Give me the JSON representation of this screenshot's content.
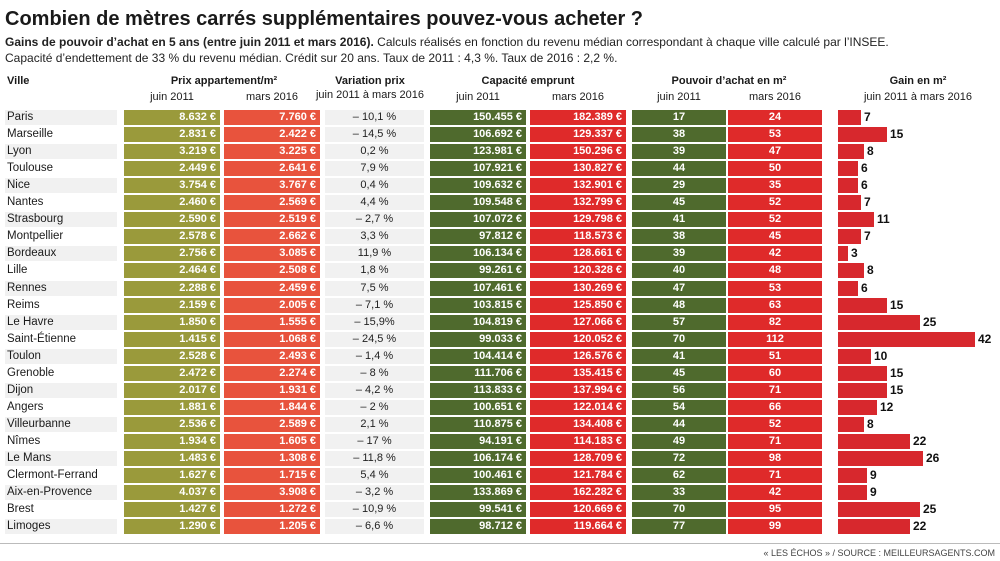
{
  "title": "Combien de mètres carrés supplémentaires pouvez-vous acheter ?",
  "subtitle_bold": "Gains de pouvoir d’achat en 5 ans (entre juin 2011 et mars 2016).",
  "subtitle_rest": " Calculs réalisés en fonction du revenu médian correspondant à chaque ville calculé par l’INSEE.",
  "subtitle2": "Capacité d’endettement de 33 % du revenu médian. Crédit sur 20 ans. Taux de 2011 : 4,3 %. Taux de 2016 : 2,2 %.",
  "headers": {
    "ville": "Ville",
    "prix": "Prix appartement/m²",
    "variation": "Variation prix",
    "variation_sub": "juin 2011 à mars 2016",
    "capacite": "Capacité emprunt",
    "pouvoir": "Pouvoir d’achat en m²",
    "gain": "Gain en m²",
    "gain_sub": "juin 2011 à mars 2016",
    "juin": "juin 2011",
    "mars": "mars 2016"
  },
  "footer": "« LES ÉCHOS » / SOURCE : MEILLEURSAGENTS.COM",
  "colors": {
    "olive": "#9a9a3b",
    "dark_green": "#4f6a2d",
    "red_light": "#e8533d",
    "red": "#df2a2a",
    "gain_bar": "#d7282d"
  },
  "chart_data": {
    "type": "table",
    "gain_max": 42,
    "rows": [
      {
        "city": "Paris",
        "prix_2011": "8.632 €",
        "prix_2016": "7.760 €",
        "variation": "– 10,1 %",
        "cap_2011": "150.455 €",
        "cap_2016": "182.389 €",
        "pa_2011": "17",
        "pa_2016": "24",
        "gain": 7
      },
      {
        "city": "Marseille",
        "prix_2011": "2.831 €",
        "prix_2016": "2.422 €",
        "variation": "– 14,5 %",
        "cap_2011": "106.692 €",
        "cap_2016": "129.337 €",
        "pa_2011": "38",
        "pa_2016": "53",
        "gain": 15
      },
      {
        "city": "Lyon",
        "prix_2011": "3.219 €",
        "prix_2016": "3.225 €",
        "variation": "0,2 %",
        "cap_2011": "123.981 €",
        "cap_2016": "150.296 €",
        "pa_2011": "39",
        "pa_2016": "47",
        "gain": 8
      },
      {
        "city": "Toulouse",
        "prix_2011": "2.449 €",
        "prix_2016": "2.641 €",
        "variation": "7,9 %",
        "cap_2011": "107.921 €",
        "cap_2016": "130.827 €",
        "pa_2011": "44",
        "pa_2016": "50",
        "gain": 6
      },
      {
        "city": "Nice",
        "prix_2011": "3.754 €",
        "prix_2016": "3.767 €",
        "variation": "0,4 %",
        "cap_2011": "109.632 €",
        "cap_2016": "132.901 €",
        "pa_2011": "29",
        "pa_2016": "35",
        "gain": 6
      },
      {
        "city": "Nantes",
        "prix_2011": "2.460 €",
        "prix_2016": "2.569 €",
        "variation": "4,4 %",
        "cap_2011": "109.548 €",
        "cap_2016": "132.799 €",
        "pa_2011": "45",
        "pa_2016": "52",
        "gain": 7
      },
      {
        "city": "Strasbourg",
        "prix_2011": "2.590 €",
        "prix_2016": "2.519 €",
        "variation": "– 2,7 %",
        "cap_2011": "107.072 €",
        "cap_2016": "129.798 €",
        "pa_2011": "41",
        "pa_2016": "52",
        "gain": 11
      },
      {
        "city": "Montpellier",
        "prix_2011": "2.578 €",
        "prix_2016": "2.662 €",
        "variation": "3,3 %",
        "cap_2011": "97.812 €",
        "cap_2016": "118.573 €",
        "pa_2011": "38",
        "pa_2016": "45",
        "gain": 7
      },
      {
        "city": "Bordeaux",
        "prix_2011": "2.756 €",
        "prix_2016": "3.085 €",
        "variation": "11,9 %",
        "cap_2011": "106.134 €",
        "cap_2016": "128.661 €",
        "pa_2011": "39",
        "pa_2016": "42",
        "gain": 3
      },
      {
        "city": "Lille",
        "prix_2011": "2.464 €",
        "prix_2016": "2.508 €",
        "variation": "1,8 %",
        "cap_2011": "99.261 €",
        "cap_2016": "120.328 €",
        "pa_2011": "40",
        "pa_2016": "48",
        "gain": 8
      },
      {
        "city": "Rennes",
        "prix_2011": "2.288 €",
        "prix_2016": "2.459 €",
        "variation": "7,5 %",
        "cap_2011": "107.461 €",
        "cap_2016": "130.269 €",
        "pa_2011": "47",
        "pa_2016": "53",
        "gain": 6
      },
      {
        "city": "Reims",
        "prix_2011": "2.159 €",
        "prix_2016": "2.005 €",
        "variation": "– 7,1 %",
        "cap_2011": "103.815 €",
        "cap_2016": "125.850 €",
        "pa_2011": "48",
        "pa_2016": "63",
        "gain": 15
      },
      {
        "city": "Le Havre",
        "prix_2011": "1.850 €",
        "prix_2016": "1.555 €",
        "variation": "– 15,9%",
        "cap_2011": "104.819 €",
        "cap_2016": "127.066 €",
        "pa_2011": "57",
        "pa_2016": "82",
        "gain": 25
      },
      {
        "city": "Saint-Étienne",
        "prix_2011": "1.415 €",
        "prix_2016": "1.068 €",
        "variation": "– 24,5 %",
        "cap_2011": "99.033 €",
        "cap_2016": "120.052 €",
        "pa_2011": "70",
        "pa_2016": "112",
        "gain": 42
      },
      {
        "city": "Toulon",
        "prix_2011": "2.528 €",
        "prix_2016": "2.493 €",
        "variation": "– 1,4 %",
        "cap_2011": "104.414 €",
        "cap_2016": "126.576 €",
        "pa_2011": "41",
        "pa_2016": "51",
        "gain": 10
      },
      {
        "city": "Grenoble",
        "prix_2011": "2.472 €",
        "prix_2016": "2.274 €",
        "variation": "– 8 %",
        "cap_2011": "111.706 €",
        "cap_2016": "135.415 €",
        "pa_2011": "45",
        "pa_2016": "60",
        "gain": 15
      },
      {
        "city": "Dijon",
        "prix_2011": "2.017 €",
        "prix_2016": "1.931 €",
        "variation": "– 4,2 %",
        "cap_2011": "113.833 €",
        "cap_2016": "137.994 €",
        "pa_2011": "56",
        "pa_2016": "71",
        "gain": 15
      },
      {
        "city": "Angers",
        "prix_2011": "1.881 €",
        "prix_2016": "1.844 €",
        "variation": "– 2 %",
        "cap_2011": "100.651 €",
        "cap_2016": "122.014 €",
        "pa_2011": "54",
        "pa_2016": "66",
        "gain": 12
      },
      {
        "city": "Villeurbanne",
        "prix_2011": "2.536 €",
        "prix_2016": "2.589 €",
        "variation": "2,1 %",
        "cap_2011": "110.875 €",
        "cap_2016": "134.408 €",
        "pa_2011": "44",
        "pa_2016": "52",
        "gain": 8
      },
      {
        "city": "Nîmes",
        "prix_2011": "1.934 €",
        "prix_2016": "1.605 €",
        "variation": "– 17 %",
        "cap_2011": "94.191 €",
        "cap_2016": "114.183 €",
        "pa_2011": "49",
        "pa_2016": "71",
        "gain": 22
      },
      {
        "city": "Le Mans",
        "prix_2011": "1.483 €",
        "prix_2016": "1.308 €",
        "variation": "– 11,8 %",
        "cap_2011": "106.174 €",
        "cap_2016": "128.709 €",
        "pa_2011": "72",
        "pa_2016": "98",
        "gain": 26
      },
      {
        "city": "Clermont-Ferrand",
        "prix_2011": "1.627 €",
        "prix_2016": "1.715 €",
        "variation": "5,4 %",
        "cap_2011": "100.461 €",
        "cap_2016": "121.784 €",
        "pa_2011": "62",
        "pa_2016": "71",
        "gain": 9
      },
      {
        "city": "Aix-en-Provence",
        "prix_2011": "4.037 €",
        "prix_2016": "3.908 €",
        "variation": "– 3,2 %",
        "cap_2011": "133.869 €",
        "cap_2016": "162.282 €",
        "pa_2011": "33",
        "pa_2016": "42",
        "gain": 9
      },
      {
        "city": "Brest",
        "prix_2011": "1.427 €",
        "prix_2016": "1.272 €",
        "variation": "– 10,9 %",
        "cap_2011": "99.541 €",
        "cap_2016": "120.669 €",
        "pa_2011": "70",
        "pa_2016": "95",
        "gain": 25
      },
      {
        "city": "Limoges",
        "prix_2011": "1.290 €",
        "prix_2016": "1.205 €",
        "variation": "– 6,6 %",
        "cap_2011": "98.712 €",
        "cap_2016": "119.664 €",
        "pa_2011": "77",
        "pa_2016": "99",
        "gain": 22
      }
    ]
  }
}
